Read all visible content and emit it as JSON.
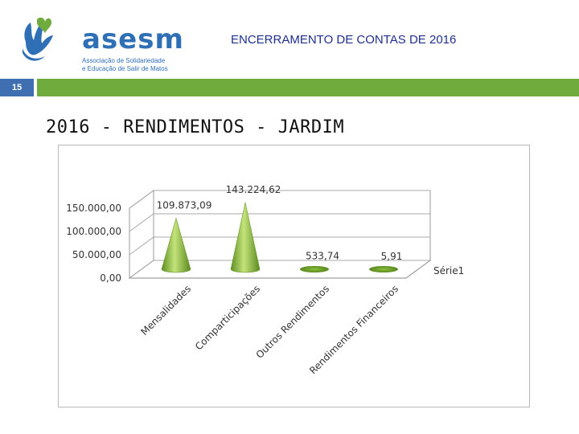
{
  "header": {
    "logo_name": "asesm",
    "logo_sub_line1": "Associação de Solidariedade",
    "logo_sub_line2": "e Educação de Salir de Matos",
    "doc_title": "ENCERRAMENTO DE CONTAS DE 2016",
    "slide_number": "15",
    "logo_icon": "hands-heart-logo-icon"
  },
  "colors": {
    "accent_green": "#6fab3d",
    "accent_blue": "#3f6fb0",
    "cone_green": "#8dc33f"
  },
  "slide_title": "2016 - RENDIMENTOS - JARDIM",
  "chart_data": {
    "type": "bar",
    "style": "3d-cone",
    "categories": [
      "Mensalidades",
      "Comparticipações",
      "Outros Rendimentos",
      "Rendimentos Financeiros"
    ],
    "series": [
      {
        "name": "Série1",
        "values": [
          109873.09,
          143224.62,
          533.74,
          5.91
        ]
      }
    ],
    "data_labels": [
      "109.873,09",
      "143.224,62",
      "533,74",
      "5,91"
    ],
    "y_ticks": [
      0,
      50000,
      100000,
      150000
    ],
    "y_tick_labels": [
      "0,00",
      "50.000,00",
      "100.000,00",
      "150.000,00"
    ],
    "ylim": [
      0,
      150000
    ],
    "grid": true,
    "legend_placement": "right",
    "title": "",
    "xlabel": "",
    "ylabel": ""
  }
}
